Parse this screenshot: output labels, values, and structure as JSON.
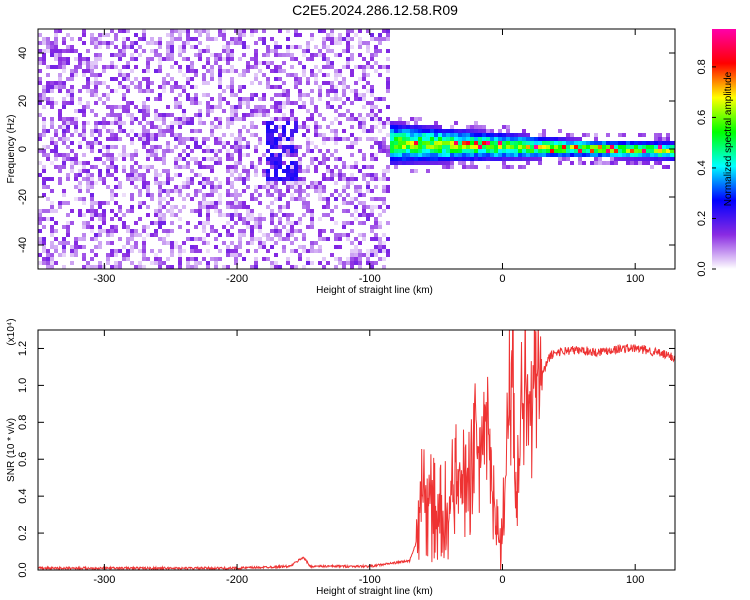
{
  "title": "C2E5.2024.286.12.58.R09",
  "chart_data": [
    {
      "type": "heatmap",
      "xlabel": "Height of straight line (km)",
      "ylabel": "Frequency (Hz)",
      "xlim": [
        -350,
        130
      ],
      "ylim": [
        -50,
        50
      ],
      "x_ticks": [
        -300,
        -200,
        -100,
        0,
        100
      ],
      "x_tick_labels": [
        "-300",
        "-200",
        "-100",
        "0",
        "100"
      ],
      "y_ticks": [
        -40,
        -20,
        0,
        20,
        40
      ],
      "y_tick_labels": [
        "-40",
        "-20",
        "0",
        "20",
        "40"
      ],
      "colorbar": {
        "label": "Normalized spectral amplitude",
        "range": [
          0,
          0.95
        ],
        "ticks": [
          0.0,
          0.2,
          0.4,
          0.6,
          0.8
        ],
        "tick_labels": [
          "0.0",
          "0.2",
          "0.4",
          "0.6",
          "0.8"
        ],
        "colormap": [
          "#ffffff",
          "#8a2be2",
          "#0000ff",
          "#00ffff",
          "#00ff00",
          "#ffff00",
          "#ff0000",
          "#ff00aa"
        ]
      },
      "regions": [
        {
          "description": "broadband noise",
          "x": [
            -350,
            -85
          ],
          "freq": [
            -50,
            50
          ],
          "amplitude": 0.05
        },
        {
          "description": "signal band",
          "x": [
            -85,
            130
          ],
          "freq_center_start": 3,
          "freq_center_end": 0,
          "amplitude": 0.5
        }
      ]
    },
    {
      "type": "line",
      "xlabel": "Height of straight line (km)",
      "ylabel": "SNR (10 * v/v)",
      "y_scale_label": "(x10⁴)",
      "xlim": [
        -350,
        130
      ],
      "ylim": [
        0,
        1.3
      ],
      "x_ticks": [
        -300,
        -200,
        -100,
        0,
        100
      ],
      "x_tick_labels": [
        "-300",
        "-200",
        "-100",
        "0",
        "100"
      ],
      "y_ticks": [
        0.0,
        0.2,
        0.4,
        0.6,
        0.8,
        1.0,
        1.2
      ],
      "y_tick_labels": [
        "0.0",
        "0.2",
        "0.4",
        "0.6",
        "0.8",
        "1.0",
        "1.2"
      ],
      "color": "#ee3333",
      "series": [
        {
          "x": [
            -350,
            -300,
            -250,
            -200,
            -160,
            -150,
            -145,
            -100,
            -80,
            -70,
            -65,
            -60,
            -55,
            -50,
            -45,
            -40,
            -35,
            -30,
            -25,
            -20,
            -15,
            -10,
            -5,
            0,
            5,
            8,
            10,
            15,
            20,
            25,
            30,
            35,
            40,
            50,
            60,
            70,
            80,
            90,
            100,
            110,
            120,
            130
          ],
          "y": [
            0.01,
            0.01,
            0.01,
            0.01,
            0.02,
            0.07,
            0.02,
            0.02,
            0.04,
            0.05,
            0.15,
            0.45,
            0.35,
            0.3,
            0.3,
            0.35,
            0.45,
            0.5,
            0.55,
            0.65,
            0.8,
            0.7,
            0.2,
            0.15,
            0.9,
            1.22,
            0.32,
            1.05,
            0.95,
            1.02,
            1.05,
            1.15,
            1.18,
            1.19,
            1.19,
            1.18,
            1.19,
            1.2,
            1.2,
            1.19,
            1.17,
            1.15
          ]
        }
      ]
    }
  ]
}
